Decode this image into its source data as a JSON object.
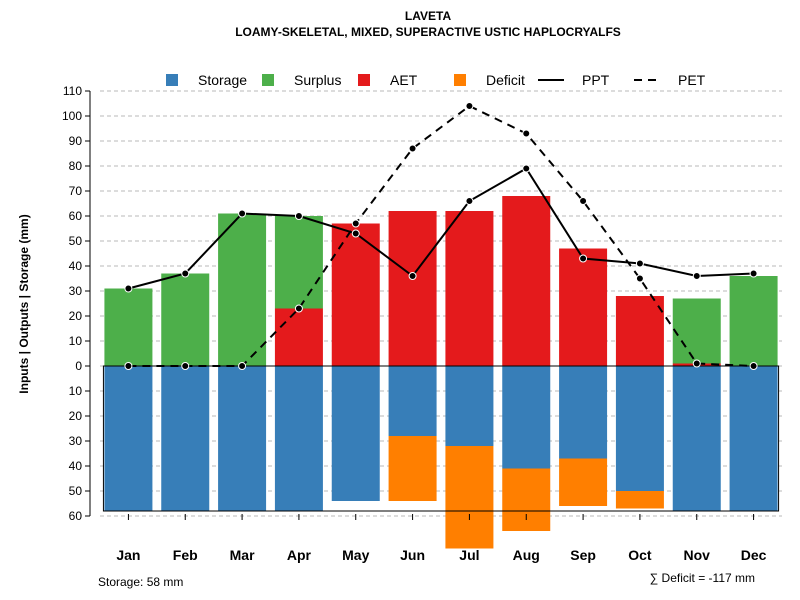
{
  "chart_data": {
    "type": "bar",
    "title": "LAVETA",
    "subtitle": "LOAMY-SKELETAL, MIXED, SUPERACTIVE USTIC HAPLOCRYALFS",
    "ylabel": "Inputs | Outputs | Storage    (mm)",
    "categories": [
      "Jan",
      "Feb",
      "Mar",
      "Apr",
      "May",
      "Jun",
      "Jul",
      "Aug",
      "Sep",
      "Oct",
      "Nov",
      "Dec"
    ],
    "ylim": [
      -60,
      110
    ],
    "yticks": [
      {
        "value": 110,
        "label": "110"
      },
      {
        "value": 100,
        "label": "100"
      },
      {
        "value": 90,
        "label": "90"
      },
      {
        "value": 80,
        "label": "80"
      },
      {
        "value": 70,
        "label": "70"
      },
      {
        "value": 60,
        "label": "60"
      },
      {
        "value": 50,
        "label": "50"
      },
      {
        "value": 40,
        "label": "40"
      },
      {
        "value": 30,
        "label": "30"
      },
      {
        "value": 20,
        "label": "20"
      },
      {
        "value": 10,
        "label": "10"
      },
      {
        "value": 0,
        "label": "0"
      },
      {
        "value": -10,
        "label": "10"
      },
      {
        "value": -20,
        "label": "20"
      },
      {
        "value": -30,
        "label": "30"
      },
      {
        "value": -40,
        "label": "40"
      },
      {
        "value": -50,
        "label": "50"
      },
      {
        "value": -60,
        "label": "60"
      }
    ],
    "grid": true,
    "legend_position": "top",
    "storage_capacity": 58,
    "series": [
      {
        "name": "Storage",
        "color": "#377EB8",
        "values": [
          58,
          58,
          58,
          58,
          54,
          28,
          32,
          41,
          37,
          50,
          58,
          58
        ]
      },
      {
        "name": "Surplus",
        "color": "#4DAF4A",
        "values": [
          31,
          37,
          61,
          37,
          0,
          0,
          0,
          0,
          0,
          0,
          26,
          36
        ]
      },
      {
        "name": "AET",
        "color": "#E41A1C",
        "values": [
          0,
          0,
          0,
          23,
          57,
          62,
          62,
          68,
          47,
          28,
          1,
          0
        ]
      },
      {
        "name": "Deficit",
        "color": "#FF7F00",
        "values": [
          0,
          0,
          0,
          0,
          0,
          26,
          41,
          25,
          19,
          7,
          0,
          0
        ]
      },
      {
        "name": "PPT",
        "color": "#000000",
        "line": "solid",
        "values": [
          31,
          37,
          61,
          60,
          53,
          36,
          66,
          79,
          43,
          41,
          36,
          37
        ]
      },
      {
        "name": "PET",
        "color": "#000000",
        "line": "dashed",
        "values": [
          0,
          0,
          0,
          23,
          57,
          87,
          104,
          93,
          66,
          35,
          1,
          0
        ]
      }
    ],
    "footnote_left": "Storage: 58 mm",
    "footnote_right": "∑ Deficit = -117 mm"
  }
}
